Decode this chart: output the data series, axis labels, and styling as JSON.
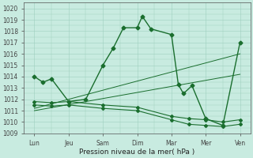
{
  "xlabel": "Pression niveau de la mer( hPa )",
  "xtick_labels": [
    "Lun",
    "Jeu",
    "Sam",
    "Dim",
    "Mar",
    "Mer",
    "Ven"
  ],
  "ylim": [
    1009,
    1020.5
  ],
  "yticks": [
    1009,
    1010,
    1011,
    1012,
    1013,
    1014,
    1015,
    1016,
    1017,
    1018,
    1019,
    1020
  ],
  "bg_color": "#c8ebe0",
  "grid_color": "#9ecfbe",
  "line_color": "#1a6e2e",
  "series_main": {
    "x": [
      0,
      0.25,
      0.5,
      1.0,
      1.5,
      2.0,
      2.3,
      2.6,
      3.0,
      3.15,
      3.4,
      4.0,
      4.2,
      4.35,
      4.6,
      5.0,
      5.5,
      6.0
    ],
    "y": [
      1014.0,
      1013.5,
      1013.8,
      1011.8,
      1012.0,
      1015.0,
      1016.5,
      1018.3,
      1018.3,
      1019.3,
      1018.2,
      1017.7,
      1013.3,
      1012.5,
      1013.2,
      1010.3,
      1009.7,
      1017.0
    ]
  },
  "series_flat1": {
    "x": [
      0,
      0.5,
      1.0,
      2.0,
      3.0,
      4.0,
      4.5,
      5.0,
      5.5,
      6.0
    ],
    "y": [
      1011.8,
      1011.7,
      1011.8,
      1011.5,
      1011.3,
      1010.5,
      1010.3,
      1010.2,
      1010.0,
      1010.2
    ]
  },
  "series_flat2": {
    "x": [
      0,
      0.5,
      1.0,
      2.0,
      3.0,
      4.0,
      4.5,
      5.0,
      5.5,
      6.0
    ],
    "y": [
      1011.5,
      1011.4,
      1011.5,
      1011.2,
      1011.0,
      1010.2,
      1009.8,
      1009.7,
      1009.6,
      1009.8
    ]
  },
  "trend1": {
    "x": [
      0,
      6
    ],
    "y": [
      1011.2,
      1016.0
    ]
  },
  "trend2": {
    "x": [
      0,
      6
    ],
    "y": [
      1011.0,
      1014.2
    ]
  },
  "figsize": [
    3.2,
    2.0
  ],
  "dpi": 100
}
